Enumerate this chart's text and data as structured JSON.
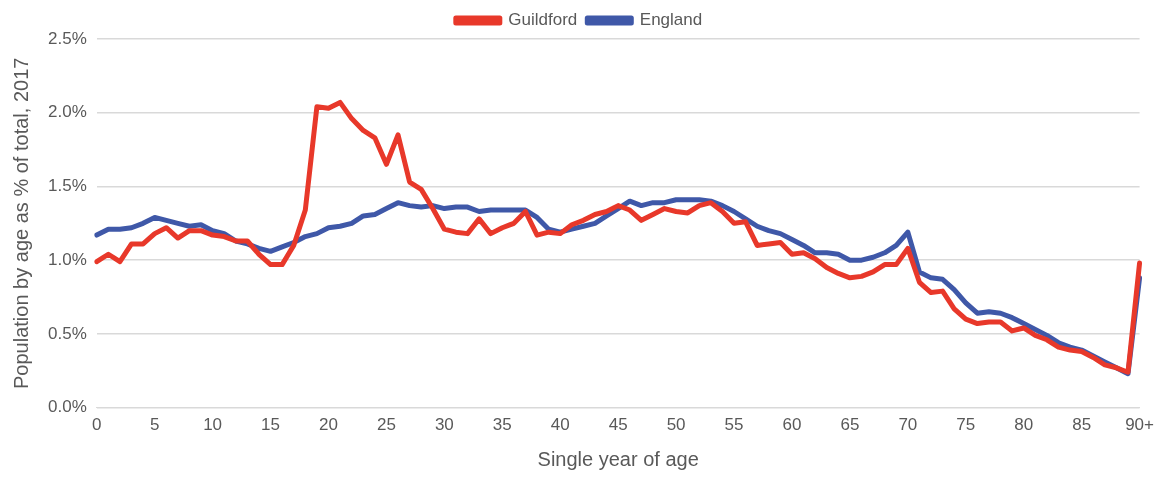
{
  "chart_data": {
    "type": "line",
    "xlabel": "Single year of age",
    "ylabel": "Population by age as % of total, 2017",
    "categories": [
      "0",
      null,
      null,
      null,
      null,
      "5",
      null,
      null,
      null,
      null,
      "10",
      null,
      null,
      null,
      null,
      "15",
      null,
      null,
      null,
      null,
      "20",
      null,
      null,
      null,
      null,
      "25",
      null,
      null,
      null,
      null,
      "30",
      null,
      null,
      null,
      null,
      "35",
      null,
      null,
      null,
      null,
      "40",
      null,
      null,
      null,
      null,
      "45",
      null,
      null,
      null,
      null,
      "50",
      null,
      null,
      null,
      null,
      "55",
      null,
      null,
      null,
      null,
      "60",
      null,
      null,
      null,
      null,
      "65",
      null,
      null,
      null,
      null,
      "70",
      null,
      null,
      null,
      null,
      "75",
      null,
      null,
      null,
      null,
      "80",
      null,
      null,
      null,
      null,
      "85",
      null,
      null,
      null,
      null,
      "90+"
    ],
    "series": [
      {
        "name": "Guildford",
        "color": "#e8382a",
        "values": [
          0.99,
          1.04,
          0.99,
          1.11,
          1.11,
          1.18,
          1.22,
          1.15,
          1.2,
          1.2,
          1.17,
          1.16,
          1.13,
          1.13,
          1.04,
          0.97,
          0.97,
          1.1,
          1.34,
          2.04,
          2.03,
          2.07,
          1.96,
          1.88,
          1.83,
          1.65,
          1.85,
          1.53,
          1.48,
          1.35,
          1.21,
          1.19,
          1.18,
          1.28,
          1.18,
          1.22,
          1.25,
          1.33,
          1.17,
          1.19,
          1.18,
          1.24,
          1.27,
          1.31,
          1.33,
          1.37,
          1.34,
          1.27,
          1.31,
          1.35,
          1.33,
          1.32,
          1.37,
          1.39,
          1.33,
          1.25,
          1.26,
          1.1,
          1.11,
          1.12,
          1.04,
          1.05,
          1.01,
          0.95,
          0.91,
          0.88,
          0.89,
          0.92,
          0.97,
          0.97,
          1.08,
          0.85,
          0.78,
          0.79,
          0.67,
          0.6,
          0.57,
          0.58,
          0.58,
          0.52,
          0.54,
          0.49,
          0.46,
          0.41,
          0.39,
          0.38,
          0.34,
          0.29,
          0.27,
          0.24,
          0.98
        ]
      },
      {
        "name": "England",
        "color": "#3f58a8",
        "values": [
          1.17,
          1.21,
          1.21,
          1.22,
          1.25,
          1.29,
          1.27,
          1.25,
          1.23,
          1.24,
          1.2,
          1.18,
          1.13,
          1.11,
          1.08,
          1.06,
          1.09,
          1.12,
          1.16,
          1.18,
          1.22,
          1.23,
          1.25,
          1.3,
          1.31,
          1.35,
          1.39,
          1.37,
          1.36,
          1.37,
          1.35,
          1.36,
          1.36,
          1.33,
          1.34,
          1.34,
          1.34,
          1.34,
          1.29,
          1.21,
          1.19,
          1.21,
          1.23,
          1.25,
          1.3,
          1.35,
          1.4,
          1.37,
          1.39,
          1.39,
          1.41,
          1.41,
          1.41,
          1.4,
          1.37,
          1.33,
          1.28,
          1.23,
          1.2,
          1.18,
          1.14,
          1.1,
          1.05,
          1.05,
          1.04,
          1.0,
          1.0,
          1.02,
          1.05,
          1.1,
          1.19,
          0.92,
          0.88,
          0.87,
          0.8,
          0.71,
          0.64,
          0.65,
          0.64,
          0.61,
          0.57,
          0.53,
          0.49,
          0.44,
          0.41,
          0.39,
          0.35,
          0.31,
          0.27,
          0.23,
          0.88
        ]
      }
    ],
    "ylim": [
      0,
      2.5
    ],
    "yticks": [
      {
        "value": 0,
        "label": "0.0%"
      },
      {
        "value": 0.5,
        "label": "0.5%"
      },
      {
        "value": 1,
        "label": "1.0%"
      },
      {
        "value": 1.5,
        "label": "1.5%"
      },
      {
        "value": 2,
        "label": "2.0%"
      },
      {
        "value": 2.5,
        "label": "2.5%"
      }
    ],
    "grid": "y",
    "legend": "top",
    "marker": "none",
    "line_style": "solid"
  }
}
